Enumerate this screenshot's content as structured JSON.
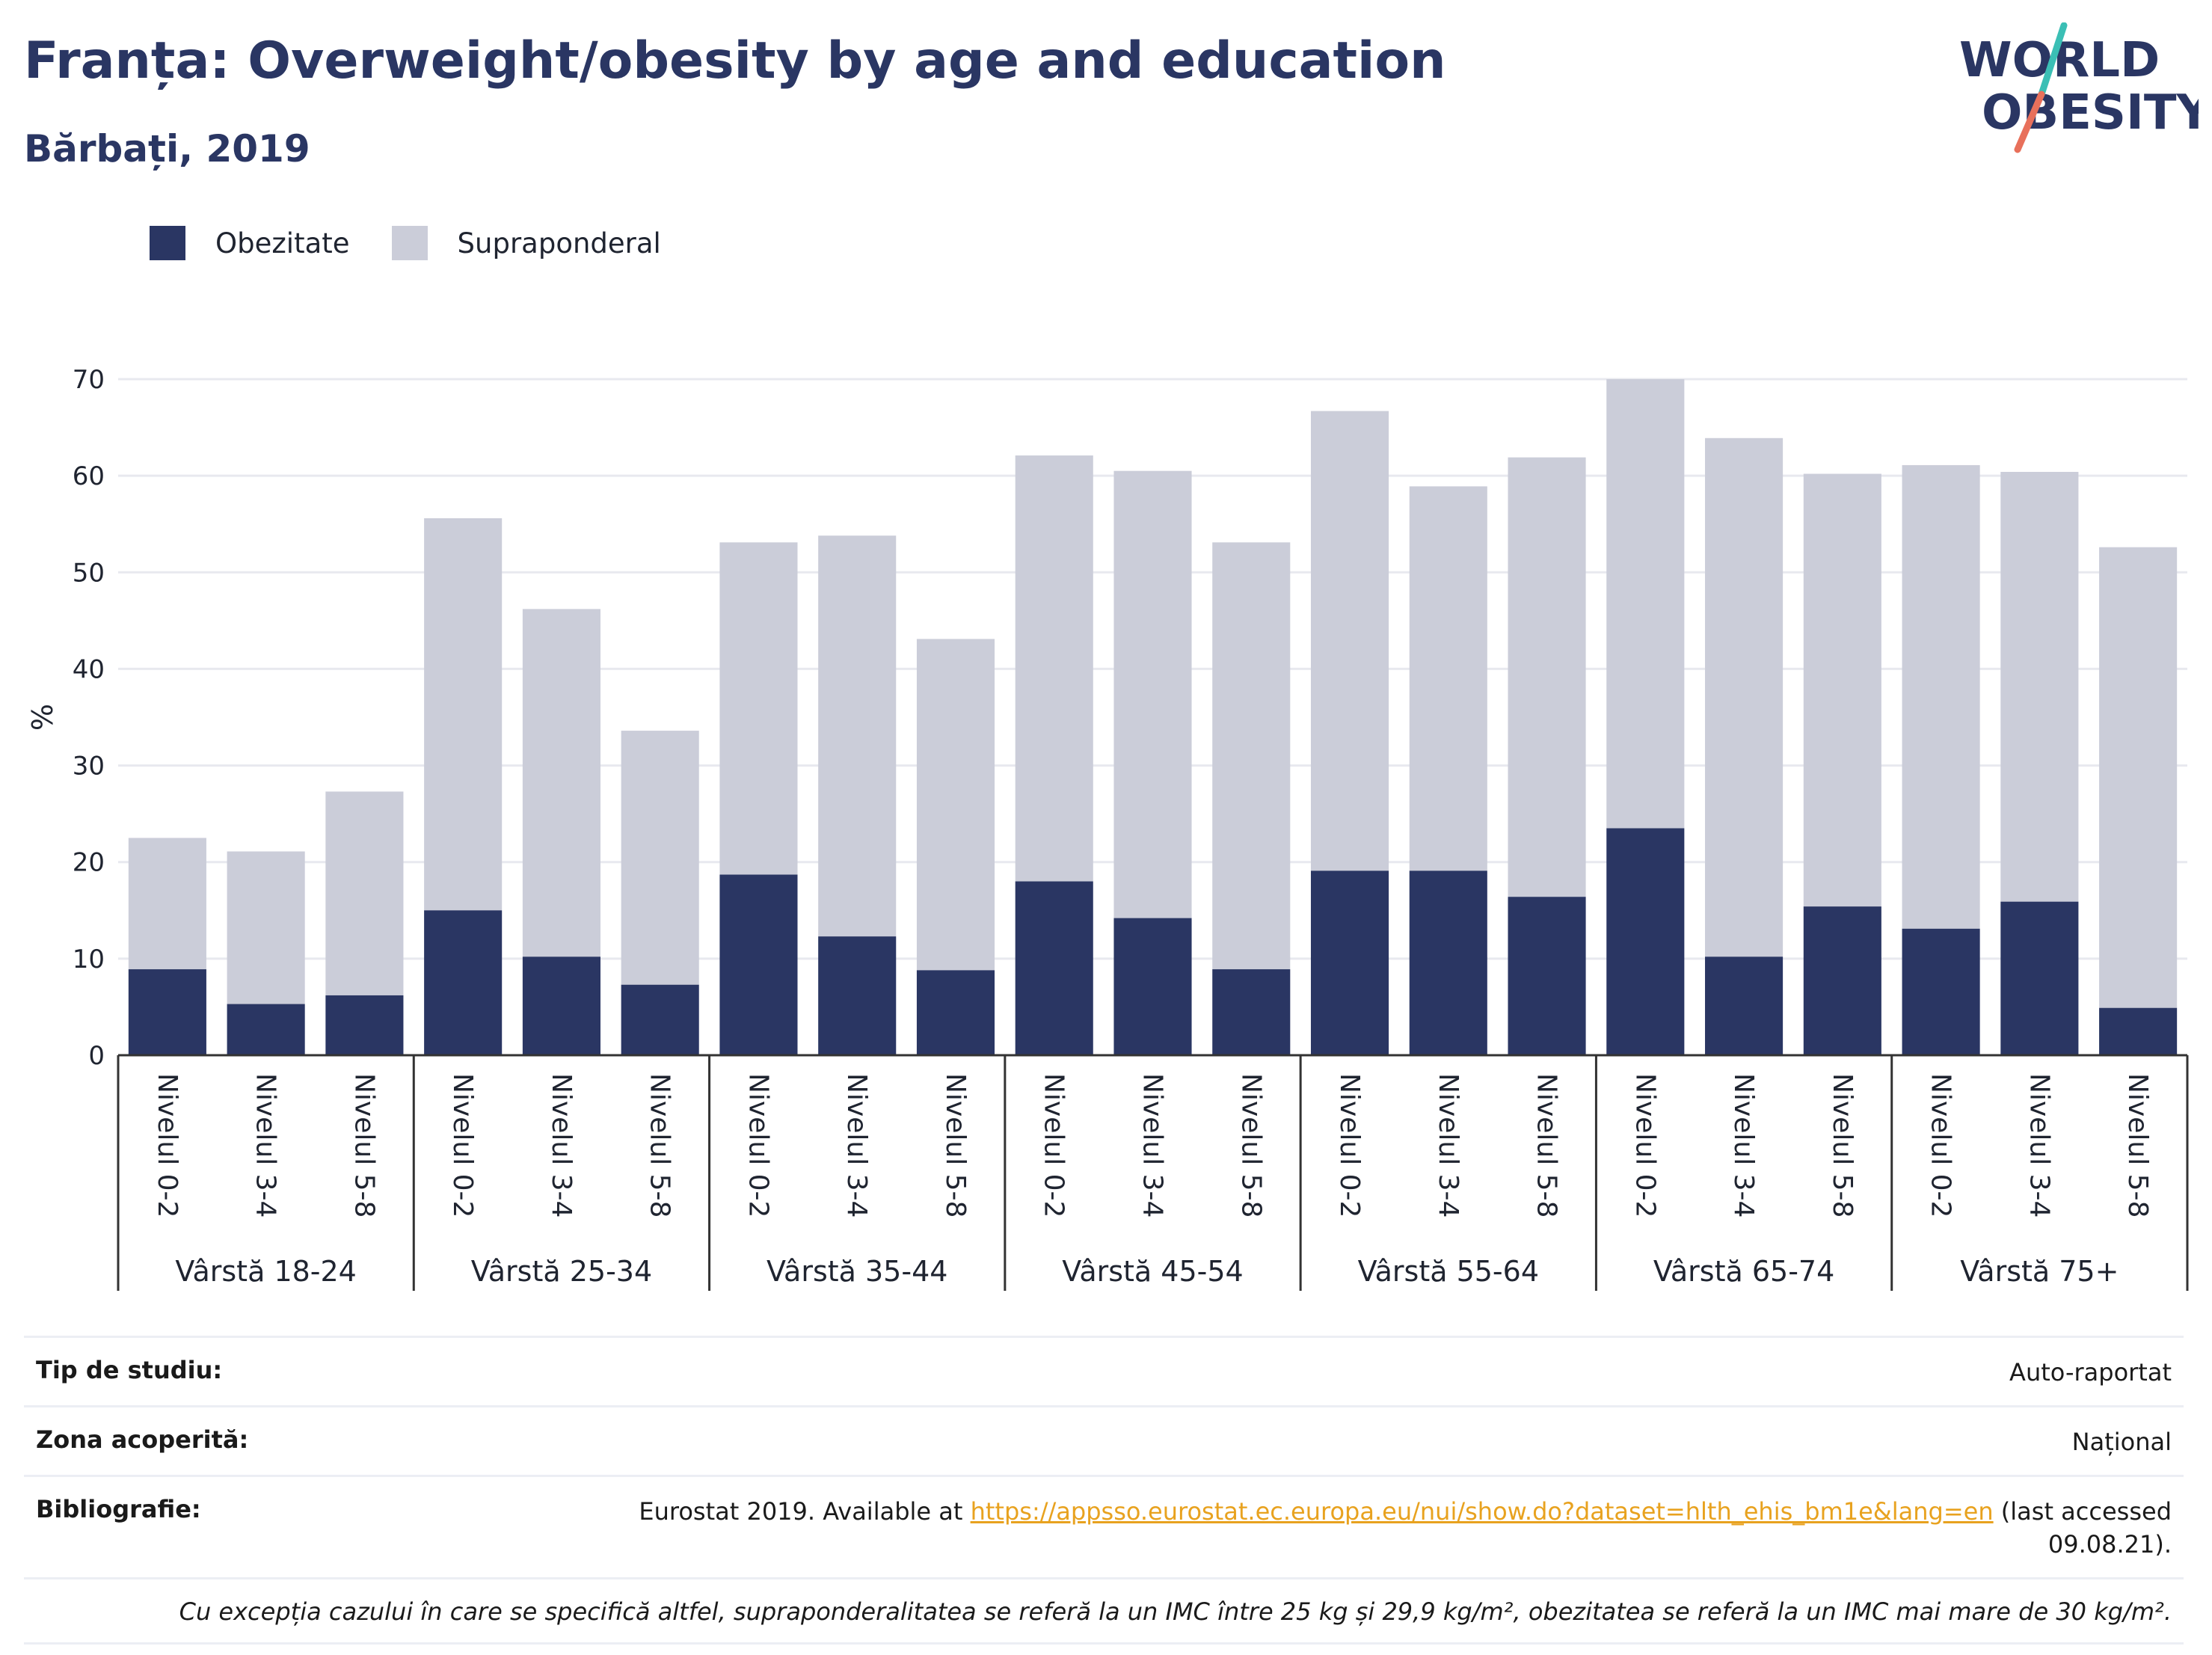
{
  "header": {
    "title": "Franța: Overweight/obesity by age and education",
    "subtitle": "Bărbați, 2019",
    "logo_line1": "WORLD",
    "logo_line2": "OBESITY"
  },
  "colors": {
    "obesity": "#2a3663",
    "overweight": "#cbcdd9",
    "grid": "#e8e9ef",
    "axis": "#333333",
    "link": "#e8a21f",
    "logo_teal": "#3bbfb5",
    "logo_coral": "#e8705b"
  },
  "chart_data": {
    "type": "bar",
    "stacked": true,
    "ylabel": "%",
    "ylim": [
      0,
      70
    ],
    "yticks": [
      0,
      10,
      20,
      30,
      40,
      50,
      60,
      70
    ],
    "grid": true,
    "legend_position": "top-left",
    "groups": [
      "Vârstă 18-24",
      "Vârstă 25-34",
      "Vârstă 35-44",
      "Vârstă 45-54",
      "Vârstă 55-64",
      "Vârstă 65-74",
      "Vârstă 75+"
    ],
    "subcategories": [
      "Nivelul 0-2",
      "Nivelul 3-4",
      "Nivelul 5-8"
    ],
    "series": [
      {
        "name": "Obezitate",
        "values": [
          8.9,
          5.3,
          6.2,
          15.0,
          10.2,
          7.3,
          18.7,
          12.3,
          8.8,
          18.0,
          14.2,
          8.9,
          19.1,
          19.1,
          16.4,
          23.5,
          10.2,
          15.4,
          13.1,
          15.9,
          4.9
        ]
      },
      {
        "name": "Supraponderal",
        "values": [
          13.6,
          15.8,
          21.1,
          40.6,
          36.0,
          26.3,
          34.4,
          41.5,
          34.3,
          44.1,
          46.3,
          44.2,
          47.6,
          39.8,
          45.5,
          46.5,
          53.7,
          44.8,
          48.0,
          44.5,
          47.7
        ]
      }
    ]
  },
  "info": {
    "study_type_label": "Tip de studiu:",
    "study_type_value": "Auto-raportat",
    "area_label": "Zona acoperită:",
    "area_value": "Național",
    "bibliography_label": "Bibliografie:",
    "bibliography_prefix": "Eurostat 2019. Available at ",
    "bibliography_link": "https://appsso.eurostat.ec.europa.eu/nui/show.do?dataset=hlth_ehis_bm1e&lang=en",
    "bibliography_suffix": " (last accessed",
    "bibliography_date": "09.08.21).",
    "note": "Cu excepția cazului în care se specifică altfel, supraponderalitatea se referă la un IMC între 25 kg și 29,9 kg/m², obezitatea se referă la un IMC mai mare de 30 kg/m²."
  }
}
